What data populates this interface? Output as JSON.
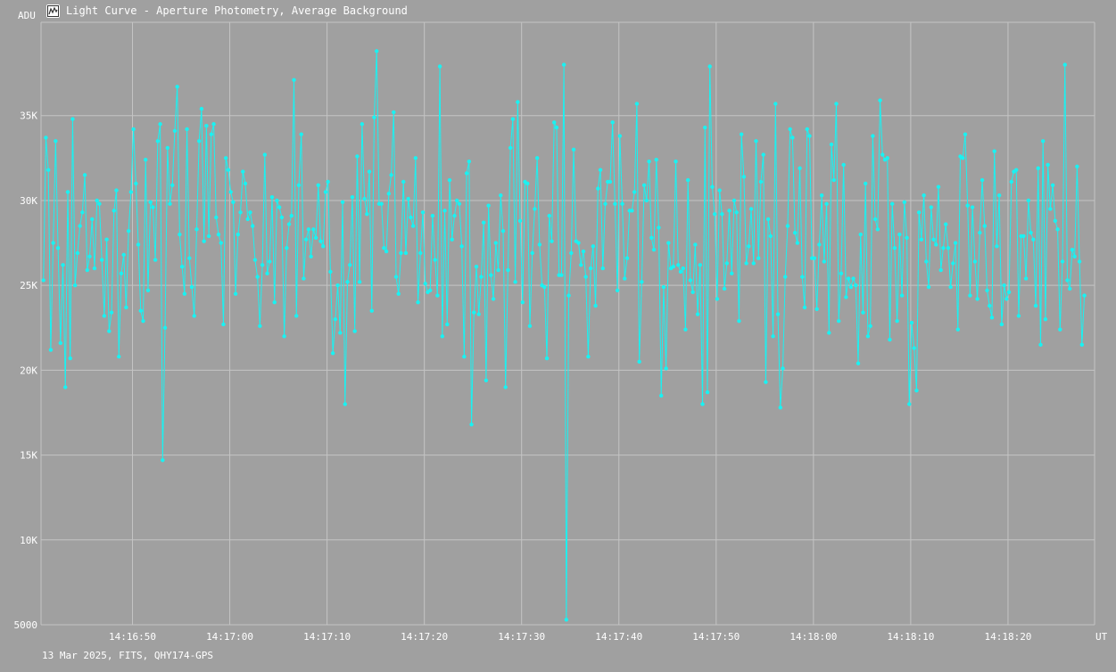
{
  "window": {
    "title": "Light Curve - Aperture Photometry, Average Background",
    "icon": "light-curve-app-icon"
  },
  "footer": {
    "text": "13 Mar 2025, FITS, QHY174-GPS"
  },
  "colors": {
    "background": "#a0a0a0",
    "grid": "#c4c4c4",
    "series": "#19f2f2",
    "text": "#ffffff"
  },
  "chart_data": {
    "type": "line",
    "title": "Light Curve - Aperture Photometry, Average Background",
    "ylabel": "ADU",
    "xlabel": "UT",
    "ylim": [
      5000,
      40500
    ],
    "xlim": [
      "14:16:40.6",
      "14:18:28.9"
    ],
    "yticks": [
      5000,
      10000,
      15000,
      20000,
      25000,
      30000,
      35000
    ],
    "ytick_labels": [
      "5000",
      "10K",
      "15K",
      "20K",
      "25K",
      "30K",
      "35K"
    ],
    "xtick_labels": [
      "14:16:50",
      "14:17:00",
      "14:17:10",
      "14:17:20",
      "14:17:30",
      "14:17:40",
      "14:17:50",
      "14:18:00",
      "14:18:10",
      "14:18:20"
    ],
    "grid": true,
    "markers": true,
    "sample_interval_s": 0.25,
    "series": [
      {
        "values": [
          25300,
          33700,
          31800,
          21200,
          27500,
          33500,
          27200,
          21600,
          26200,
          19000,
          30500,
          20700,
          34800,
          25000,
          26900,
          28500,
          29300,
          31500,
          25900,
          26700,
          28900,
          26000,
          30000,
          29800,
          26500,
          23200,
          27700,
          22300,
          23400,
          29400,
          30600,
          20800,
          25700,
          26800,
          23700,
          28200,
          30500,
          34200,
          31000,
          27400,
          23500,
          22900,
          32400,
          24700,
          29900,
          29600,
          26500,
          33500,
          34500,
          14700,
          22500,
          33100,
          29800,
          30900,
          34100,
          36700,
          28000,
          26100,
          24500,
          34200,
          26600,
          24900,
          23200,
          28300,
          33500,
          35400,
          27600,
          34400,
          27900,
          33900,
          34500,
          29000,
          28000,
          27500,
          22700,
          32500,
          31800,
          30500,
          29900,
          24500,
          28000,
          29300,
          31700,
          31000,
          28900,
          29300,
          28500,
          26500,
          25500,
          22600,
          26200,
          32700,
          25700,
          26400,
          30200,
          24000,
          30000,
          29600,
          29000,
          22000,
          27200,
          28600,
          29100,
          37100,
          23200,
          30900,
          33900,
          25400,
          27700,
          28300,
          26700,
          28300,
          27800,
          30900,
          27600,
          27300,
          30500,
          31100,
          25800,
          21000,
          23000,
          25000,
          22200,
          29900,
          18000,
          25200,
          26200,
          30200,
          22300,
          32600,
          25200,
          34500,
          30100,
          29200,
          31700,
          23500,
          34900,
          38800,
          29800,
          29800,
          27200,
          27000,
          30400,
          31500,
          35200,
          25500,
          24500,
          26900,
          31100,
          26900,
          30100,
          29000,
          28500,
          32500,
          24000,
          26900,
          29300,
          25100,
          24600,
          24700,
          29100,
          26500,
          24400,
          37900,
          22000,
          29400,
          22700,
          31200,
          27700,
          29100,
          30000,
          29800,
          27300,
          20800,
          31600,
          32300,
          16800,
          23400,
          26100,
          23300,
          25500,
          28700,
          19400,
          29700,
          25600,
          24200,
          27500,
          25900,
          30300,
          28200,
          19000,
          25900,
          33100,
          34800,
          25200,
          35800,
          28800,
          24000,
          31100,
          31000,
          22600,
          26900,
          29500,
          32500,
          27400,
          25000,
          24900,
          20700,
          29100,
          27600,
          34600,
          34300,
          25600,
          25600,
          38000,
          5300,
          24400,
          26900,
          33000,
          27600,
          27500,
          26200,
          27000,
          25500,
          20800,
          26000,
          27300,
          23800,
          30700,
          31800,
          26000,
          29800,
          31100,
          31100,
          34600,
          29800,
          24700,
          33800,
          29800,
          25400,
          26600,
          29400,
          29400,
          30500,
          35700,
          20500,
          25200,
          30900,
          30000,
          32300,
          27800,
          27100,
          32400,
          28400,
          18500,
          24900,
          20100,
          27500,
          26000,
          26100,
          32300,
          26200,
          25800,
          26000,
          22400,
          31200,
          25300,
          24600,
          27400,
          23300,
          26200,
          18000,
          34300,
          18700,
          37900,
          30800,
          29200,
          24200,
          30600,
          29200,
          24800,
          26300,
          29400,
          25700,
          30000,
          29300,
          22900,
          33900,
          31400,
          26300,
          27300,
          29500,
          26300,
          33500,
          26600,
          31100,
          32700,
          19300,
          28900,
          27900,
          22000,
          35700,
          23300,
          17800,
          20100,
          25500,
          28500,
          34200,
          33700,
          28100,
          27500,
          31900,
          25500,
          23700,
          34200,
          33800,
          26600,
          26600,
          23600,
          27400,
          30300,
          26400,
          29800,
          22200,
          33300,
          31200,
          35700,
          22900,
          25700,
          32100,
          24300,
          25400,
          24900,
          25400,
          25000,
          20400,
          28000,
          23400,
          31000,
          22000,
          22600,
          33800,
          28900,
          28300,
          35900,
          32700,
          32400,
          32500,
          21800,
          29800,
          27200,
          22900,
          28000,
          24400,
          29900,
          27800,
          18000,
          22800,
          21300,
          18800,
          29300,
          27700,
          30300,
          26400,
          24900,
          29600,
          27700,
          27400,
          30800,
          25900,
          27200,
          28600,
          27200,
          24900,
          26300,
          27500,
          22400,
          32600,
          32500,
          33900,
          29700,
          24400,
          29600,
          26400,
          24200,
          28100,
          31200,
          28500,
          24700,
          23800,
          23100,
          32900,
          27300,
          30300,
          22700,
          25000,
          24200,
          24600,
          31100,
          31700,
          31800,
          23200,
          27900,
          27900,
          25400,
          30000,
          28100,
          27700,
          23800,
          31900,
          21500,
          33500,
          23000,
          32100,
          29500,
          30900,
          28800,
          28300,
          22400,
          26400,
          38000,
          25300,
          24800,
          27100,
          26700,
          32000,
          26400,
          21500,
          24400
        ]
      }
    ]
  }
}
